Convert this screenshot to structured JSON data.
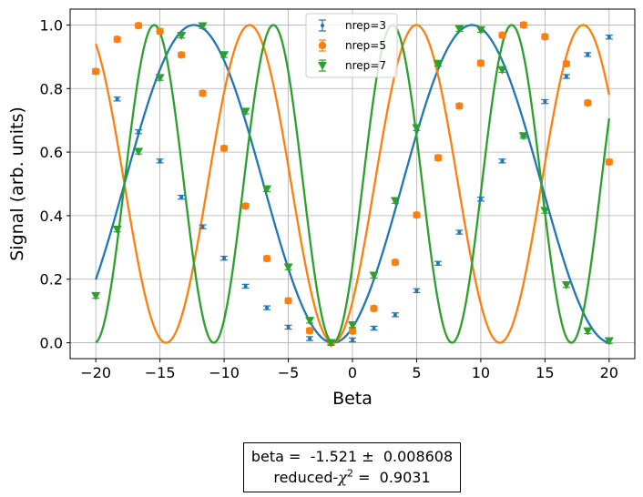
{
  "chart_data": {
    "type": "scatter",
    "title": "",
    "xlabel": "Beta",
    "ylabel": "Signal (arb. units)",
    "xlim": [
      -22,
      22
    ],
    "ylim": [
      -0.05,
      1.05
    ],
    "xticks": [
      -20,
      -15,
      -10,
      -5,
      0,
      5,
      10,
      15,
      20
    ],
    "yticks": [
      0.0,
      0.2,
      0.4,
      0.6,
      0.8,
      1.0
    ],
    "xtick_labels": [
      "−20",
      "−15",
      "−10",
      "−5",
      "0",
      "5",
      "10",
      "15",
      "20"
    ],
    "ytick_labels": [
      "0.0",
      "0.2",
      "0.4",
      "0.6",
      "0.8",
      "1.0"
    ],
    "grid": true,
    "legend_position": "top-center",
    "x": [
      -20,
      -18.33,
      -16.67,
      -15,
      -13.33,
      -11.67,
      -10,
      -8.33,
      -6.67,
      -5,
      -3.33,
      -1.67,
      0,
      1.67,
      3.33,
      5,
      6.67,
      8.33,
      10,
      11.67,
      13.33,
      15,
      16.67,
      18.33,
      20
    ],
    "series": [
      {
        "name": "nrep=3",
        "color": "#1f77b4",
        "marker": "dot",
        "values": [
          0.852,
          0.767,
          0.664,
          0.572,
          0.458,
          0.365,
          0.266,
          0.178,
          0.11,
          0.049,
          0.013,
          0.0,
          0.009,
          0.046,
          0.088,
          0.164,
          0.25,
          0.348,
          0.452,
          0.572,
          0.654,
          0.759,
          0.838,
          0.907,
          0.962
        ],
        "error": 0.006
      },
      {
        "name": "nrep=5",
        "color": "#ff7f0e",
        "marker": "circle",
        "values": [
          0.854,
          0.955,
          0.998,
          0.98,
          0.906,
          0.785,
          0.612,
          0.43,
          0.265,
          0.132,
          0.038,
          0.0,
          0.037,
          0.108,
          0.253,
          0.402,
          0.582,
          0.745,
          0.88,
          0.968,
          1.0,
          0.963,
          0.878,
          0.755,
          0.569
        ],
        "error": 0.008
      },
      {
        "name": "nrep=7",
        "color": "#2ca02c",
        "marker": "triangle-down",
        "values": [
          0.148,
          0.357,
          0.602,
          0.834,
          0.967,
          0.997,
          0.906,
          0.728,
          0.484,
          0.238,
          0.07,
          0.0,
          0.056,
          0.212,
          0.447,
          0.676,
          0.879,
          0.988,
          0.985,
          0.859,
          0.651,
          0.416,
          0.182,
          0.037,
          0.006
        ],
        "error": 0.008
      }
    ],
    "fits": [
      {
        "name": "nrep=3",
        "color": "#1f77b4",
        "n": 3
      },
      {
        "name": "nrep=5",
        "color": "#ff7f0e",
        "n": 5
      },
      {
        "name": "nrep=7",
        "color": "#2ca02c",
        "n": 7
      }
    ],
    "fit_center": -1.521,
    "fit_period": 65
  },
  "fit_box": {
    "line1": "beta =  -1.521 ±  0.008608",
    "line2_prefix": "reduced-",
    "chi_symbol": "χ",
    "chi_exp": "2",
    "line2_suffix": " =  0.9031"
  }
}
